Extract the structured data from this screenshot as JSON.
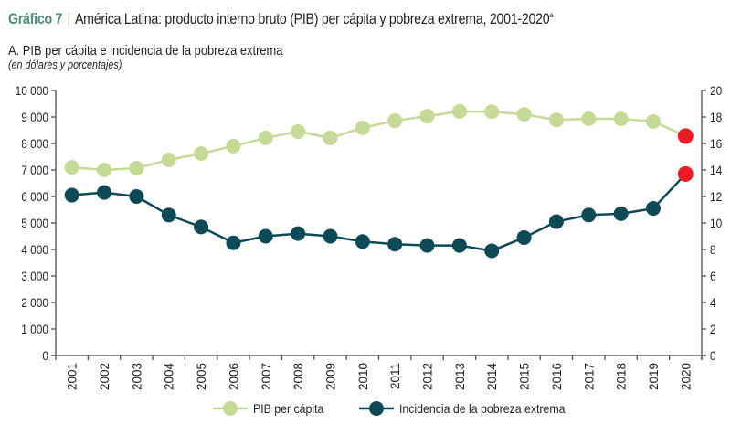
{
  "header": {
    "figure_number": "Gráfico 7",
    "separator": "|",
    "title": "América Latina: producto interno bruto (PIB) per cápita y pobreza extrema, 2001-2020",
    "title_footnote": "a",
    "panel_title": "A. PIB per cápita e incidencia de la pobreza extrema",
    "units": "(en dólares y porcentajes)"
  },
  "colors": {
    "pib": "#c5da96",
    "pobreza": "#0e4956",
    "highlight": "#ed1c24",
    "axis": "#4d4d4d",
    "figure_number": "#4a8a7a"
  },
  "chart_data": {
    "type": "line",
    "title": "A. PIB per cápita e incidencia de la pobreza extrema",
    "subtitle": "(en dólares y porcentajes)",
    "xlabel": "",
    "ylabel": "",
    "categories": [
      "2001",
      "2002",
      "2003",
      "2004",
      "2005",
      "2006",
      "2007",
      "2008",
      "2009",
      "2010",
      "2011",
      "2012",
      "2013",
      "2014",
      "2015",
      "2016",
      "2017",
      "2018",
      "2019",
      "2020"
    ],
    "series": [
      {
        "name": "PIB per cápita",
        "axis": "left",
        "values": [
          7100,
          7000,
          7070,
          7380,
          7620,
          7900,
          8210,
          8450,
          8210,
          8590,
          8860,
          9030,
          9210,
          9200,
          9100,
          8890,
          8930,
          8930,
          8830,
          8280
        ],
        "highlight_last": true
      },
      {
        "name": "Incidencia de la pobreza extrema",
        "axis": "right",
        "values": [
          12.1,
          12.3,
          12.0,
          10.6,
          9.7,
          8.5,
          9.0,
          9.2,
          9.0,
          8.6,
          8.4,
          8.3,
          8.3,
          7.9,
          8.9,
          10.1,
          10.6,
          10.7,
          11.1,
          13.7
        ],
        "highlight_last": true
      }
    ],
    "y_left": {
      "lim": [
        0,
        10000
      ],
      "ticks": [
        0,
        1000,
        2000,
        3000,
        4000,
        5000,
        6000,
        7000,
        8000,
        9000,
        10000
      ],
      "tick_labels": [
        "0",
        "1 000",
        "2 000",
        "3 000",
        "4 000",
        "5 000",
        "6 000",
        "7 000",
        "8 000",
        "9 000",
        "10 000"
      ]
    },
    "y_right": {
      "lim": [
        0,
        20
      ],
      "ticks": [
        0,
        2,
        4,
        6,
        8,
        10,
        12,
        14,
        16,
        18,
        20
      ],
      "tick_labels": [
        "0",
        "2",
        "4",
        "6",
        "8",
        "10",
        "12",
        "14",
        "16",
        "18",
        "20"
      ]
    },
    "grid": false,
    "legend_position": "bottom-center",
    "legend": [
      "PIB per cápita",
      "Incidencia de la pobreza extrema"
    ]
  }
}
